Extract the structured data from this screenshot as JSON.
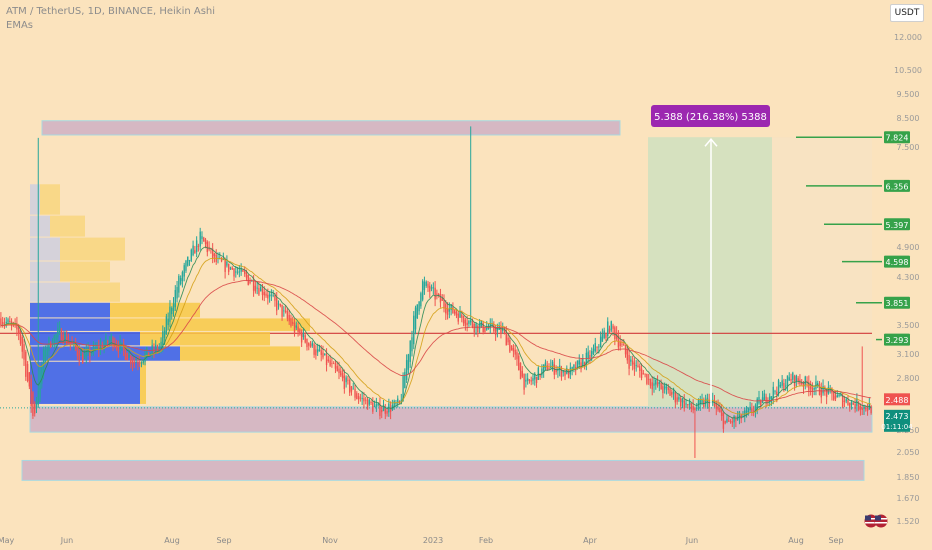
{
  "header": {
    "symbol_line": "ATM / TetherUS, 1D, BINANCE, Heikin Ashi",
    "indicator": "EMAs"
  },
  "currency_button": "USDT",
  "colors": {
    "background": "#fbe3bd",
    "up_candle": "#26a69a",
    "down_candle": "#ef5350",
    "zone": "#c9a9c6",
    "profit_box": "#cfe0c0",
    "resistance_line": "#d13a3a",
    "tp_line": "#36a24a",
    "vp_blue": "#3d63ea",
    "vp_yellow": "#f7c948",
    "ema_fast": "#2e8b57",
    "ema_mid": "#d4a017",
    "ema_slow": "#d94848"
  },
  "chart_data": {
    "type": "candlestick",
    "price_scale": "log",
    "y_axis_ticks": [
      "12.000",
      "10.500",
      "9.500",
      "8.500",
      "7.500",
      "4.900",
      "4.300",
      "3.500",
      "3.100",
      "2.800",
      "2.250",
      "2.050",
      "1.850",
      "1.670",
      "1.520"
    ],
    "x_axis_ticks": [
      "May",
      "Jun",
      "Aug",
      "Sep",
      "Nov",
      "2023",
      "Feb",
      "Apr",
      "Jun",
      "Aug",
      "Sep"
    ],
    "target_labels": [
      "7.824",
      "6.356",
      "5.397",
      "4.598",
      "3.851",
      "3.293"
    ],
    "last_price": "2.473",
    "ema_price": "2.488",
    "countdown": "01:11:04",
    "measure_label": "5.388 (216.38%) 5388",
    "ylim": [
      1.5,
      12.5
    ],
    "support_zone": [
      2.23,
      2.48
    ],
    "lower_zone": [
      1.82,
      1.98
    ],
    "upper_zone": [
      7.9,
      8.4
    ],
    "resistance_level": 3.38
  }
}
